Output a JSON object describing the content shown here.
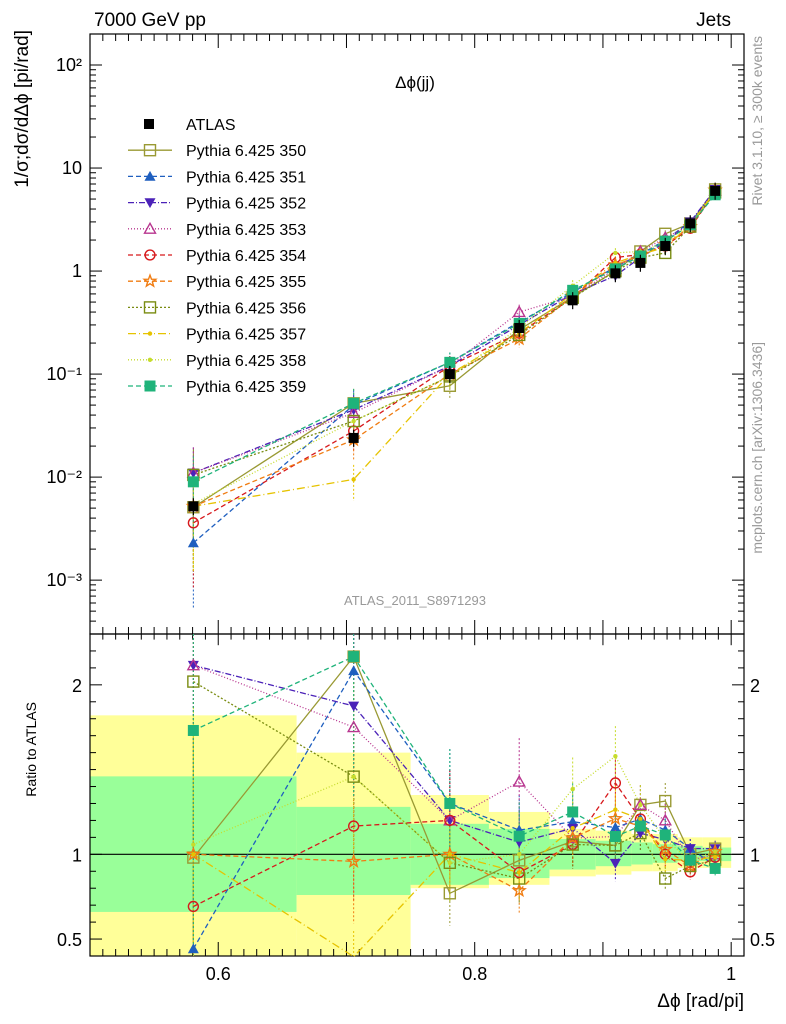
{
  "header": {
    "left": "7000 GeV pp",
    "right": "Jets"
  },
  "side_labels": {
    "rivet": "Rivet 3.1.10, ≥ 300k events",
    "mcplots": "mcplots.cern.ch [arXiv:1306.3436]"
  },
  "watermark": "ATLAS_2011_S8971293",
  "chart_data": {
    "type": "scatter",
    "title": "Δϕ(jj)",
    "xlabel": "Δϕ [rad/pi]",
    "ylabel": "1/σ;dσ/dΔϕ [pi/rad]",
    "ratio_ylabel": "Ratio to ATLAS",
    "xlim": [
      0.5,
      1.01
    ],
    "ylim": [
      0.0003,
      200
    ],
    "yscale": "log",
    "ratio_ylim": [
      0.4,
      2.3
    ],
    "xticks": [
      0.6,
      0.8,
      1.0
    ],
    "xtick_labels": [
      "0.6",
      "0.8",
      "1"
    ],
    "yticks_main": [
      0.001,
      0.01,
      0.1,
      1,
      10,
      100
    ],
    "ytick_labels_main": [
      "10⁻³",
      "10⁻²",
      "10⁻¹",
      "1",
      "10",
      "10²"
    ],
    "yticks_ratio": [
      0.5,
      1,
      2
    ],
    "ytick_labels_ratio": [
      "0.5",
      "1",
      "2"
    ],
    "x": [
      0.5806,
      0.7056,
      0.7806,
      0.8347,
      0.8764,
      0.9097,
      0.9292,
      0.9486,
      0.9681,
      0.9875
    ],
    "data": {
      "name": "ATLAS",
      "values": [
        0.0052,
        0.024,
        0.1,
        0.28,
        0.52,
        0.95,
        1.2,
        1.75,
        2.9,
        6.0
      ]
    },
    "ratio_bands": {
      "edges": [
        0.5,
        0.6611,
        0.75,
        0.8111,
        0.8583,
        0.8944,
        0.9222,
        0.9389,
        0.9583,
        0.9778,
        1.0
      ],
      "inner": [
        [
          0.66,
          1.46
        ],
        [
          0.76,
          1.28
        ],
        [
          0.82,
          1.18
        ],
        [
          0.86,
          1.15
        ],
        [
          0.91,
          1.09
        ],
        [
          0.93,
          1.08
        ],
        [
          0.94,
          1.07
        ],
        [
          0.95,
          1.06
        ],
        [
          0.96,
          1.05
        ],
        [
          0.96,
          1.04
        ]
      ],
      "outer": [
        [
          0.35,
          1.82
        ],
        [
          0.38,
          1.6
        ],
        [
          0.8,
          1.35
        ],
        [
          0.82,
          1.25
        ],
        [
          0.87,
          1.15
        ],
        [
          0.88,
          1.14
        ],
        [
          0.9,
          1.12
        ],
        [
          0.9,
          1.12
        ],
        [
          0.92,
          1.1
        ],
        [
          0.92,
          1.1
        ]
      ]
    },
    "series": [
      {
        "name": "Pythia 6.425 350",
        "color": "#999933",
        "marker": "square-open",
        "dash": "",
        "values": [
          0.0051,
          0.052,
          0.077,
          0.27,
          0.56,
          1.0,
          1.55,
          2.3,
          2.9,
          6.2
        ]
      },
      {
        "name": "Pythia 6.425 351",
        "color": "#1f5fbf",
        "marker": "triangle",
        "dash": "5,3",
        "values": [
          0.0023,
          0.05,
          0.13,
          0.32,
          0.62,
          1.1,
          1.45,
          2.0,
          3.0,
          5.6
        ]
      },
      {
        "name": "Pythia 6.425 352",
        "color": "#4b22b8",
        "marker": "triangle-down",
        "dash": "6,2,1,2",
        "values": [
          0.011,
          0.045,
          0.12,
          0.3,
          0.6,
          0.9,
          1.35,
          1.9,
          3.0,
          6.2
        ]
      },
      {
        "name": "Pythia 6.425 353",
        "color": "#b8358f",
        "marker": "triangle-open",
        "dash": "1,2",
        "values": [
          0.011,
          0.042,
          0.12,
          0.4,
          0.57,
          1.05,
          1.55,
          2.1,
          2.8,
          6.0
        ]
      },
      {
        "name": "Pythia 6.425 354",
        "color": "#d7191c",
        "marker": "circle-open",
        "dash": "5,3",
        "values": [
          0.0036,
          0.028,
          0.12,
          0.25,
          0.55,
          1.35,
          1.45,
          1.75,
          2.6,
          5.9
        ]
      },
      {
        "name": "Pythia 6.425 355",
        "color": "#f07c12",
        "marker": "star-open",
        "dash": "5,3",
        "values": [
          0.0052,
          0.023,
          0.1,
          0.22,
          0.57,
          1.15,
          1.4,
          1.8,
          2.7,
          6.1
        ]
      },
      {
        "name": "Pythia 6.425 356",
        "color": "#7a8c12",
        "marker": "square-open",
        "dash": "2,2",
        "values": [
          0.0105,
          0.035,
          0.095,
          0.24,
          0.55,
          1.0,
          1.35,
          1.5,
          2.7,
          5.8
        ]
      },
      {
        "name": "Pythia 6.425 357",
        "color": "#e6c300",
        "marker": "point",
        "dash": "8,3,1,3",
        "values": [
          0.0052,
          0.0095,
          0.1,
          0.25,
          0.6,
          1.2,
          1.45,
          1.7,
          2.8,
          5.9
        ]
      },
      {
        "name": "Pythia 6.425 358",
        "color": "#c6dc2c",
        "marker": "point",
        "dash": "1,2",
        "values": [
          0.0055,
          0.035,
          0.095,
          0.28,
          0.72,
          1.5,
          1.55,
          1.9,
          2.8,
          6.1
        ]
      },
      {
        "name": "Pythia 6.425 359",
        "color": "#1fb37a",
        "marker": "square",
        "dash": "5,3",
        "values": [
          0.009,
          0.052,
          0.13,
          0.31,
          0.65,
          1.05,
          1.4,
          1.95,
          2.8,
          5.5
        ]
      }
    ]
  }
}
